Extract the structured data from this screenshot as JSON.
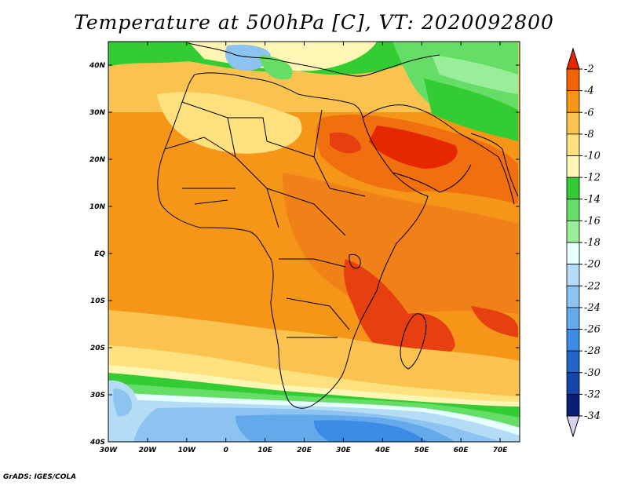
{
  "title": "Temperature at 500hPa [C], VT: 2020092800",
  "credit": "GrADS: IGES/COLA",
  "variable": "Temperature at 500hPa",
  "units": "C",
  "valid_time": "2020092800",
  "map": {
    "lon_labels": [
      "30W",
      "20W",
      "10W",
      "0",
      "10E",
      "20E",
      "30E",
      "40E",
      "50E",
      "60E",
      "70E"
    ],
    "lon_values": [
      -30,
      -20,
      -10,
      0,
      10,
      20,
      30,
      40,
      50,
      60,
      70
    ],
    "lat_labels": [
      "40N",
      "30N",
      "20N",
      "10N",
      "EQ",
      "10S",
      "20S",
      "30S",
      "40S"
    ],
    "lat_values": [
      40,
      30,
      20,
      10,
      0,
      -10,
      -20,
      -30,
      -40
    ],
    "lon_range": [
      -30,
      75
    ],
    "lat_range": [
      -40,
      45
    ]
  },
  "colorbar": {
    "labels": [
      "-2",
      "-4",
      "-6",
      "-8",
      "-10",
      "-12",
      "-14",
      "-16",
      "-18",
      "-20",
      "-22",
      "-24",
      "-26",
      "-28",
      "-30",
      "-32",
      "-34"
    ],
    "colors": [
      "#e62800",
      "#f06400",
      "#f59619",
      "#fac350",
      "#fde17e",
      "#fff5b4",
      "#33cc33",
      "#66dd66",
      "#99ee99",
      "#e6ffff",
      "#b4dcf5",
      "#8cc3f0",
      "#64aaeb",
      "#3c8ce6",
      "#2364c8",
      "#1446aa",
      "#0a1e78",
      "#d7d2f0"
    ]
  }
}
